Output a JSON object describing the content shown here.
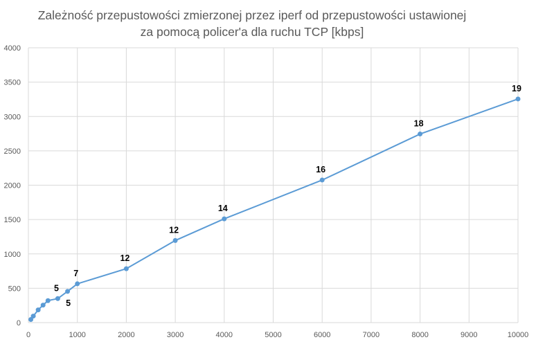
{
  "chart_data": {
    "type": "scatter",
    "title_lines": [
      "Zależność przepustowości zmierzonej przez iperf od przepustowości ustawionej",
      "za pomocą policer'a dla ruchu TCP [kbps]"
    ],
    "xlabel": "",
    "ylabel": "",
    "xlim": [
      0,
      10000
    ],
    "ylim": [
      0,
      4000
    ],
    "x_ticks": [
      0,
      1000,
      2000,
      3000,
      4000,
      5000,
      6000,
      7000,
      8000,
      9000,
      10000
    ],
    "y_ticks": [
      0,
      500,
      1000,
      1500,
      2000,
      2500,
      3000,
      3500,
      4000
    ],
    "grid": true,
    "legend": "none",
    "series": [
      {
        "color": "#5B9BD5",
        "points": [
          {
            "x": 50,
            "y": 45,
            "label": ""
          },
          {
            "x": 100,
            "y": 95,
            "label": ""
          },
          {
            "x": 200,
            "y": 185,
            "label": ""
          },
          {
            "x": 300,
            "y": 255,
            "label": ""
          },
          {
            "x": 400,
            "y": 320,
            "label": ""
          },
          {
            "x": 600,
            "y": 350,
            "label": "5"
          },
          {
            "x": 800,
            "y": 455,
            "label": "5"
          },
          {
            "x": 1000,
            "y": 565,
            "label": "7"
          },
          {
            "x": 2000,
            "y": 785,
            "label": "12"
          },
          {
            "x": 3000,
            "y": 1195,
            "label": "12"
          },
          {
            "x": 4000,
            "y": 1510,
            "label": "14"
          },
          {
            "x": 6000,
            "y": 2075,
            "label": "16"
          },
          {
            "x": 8000,
            "y": 2745,
            "label": "18"
          },
          {
            "x": 10000,
            "y": 3255,
            "label": "19"
          }
        ]
      }
    ]
  }
}
